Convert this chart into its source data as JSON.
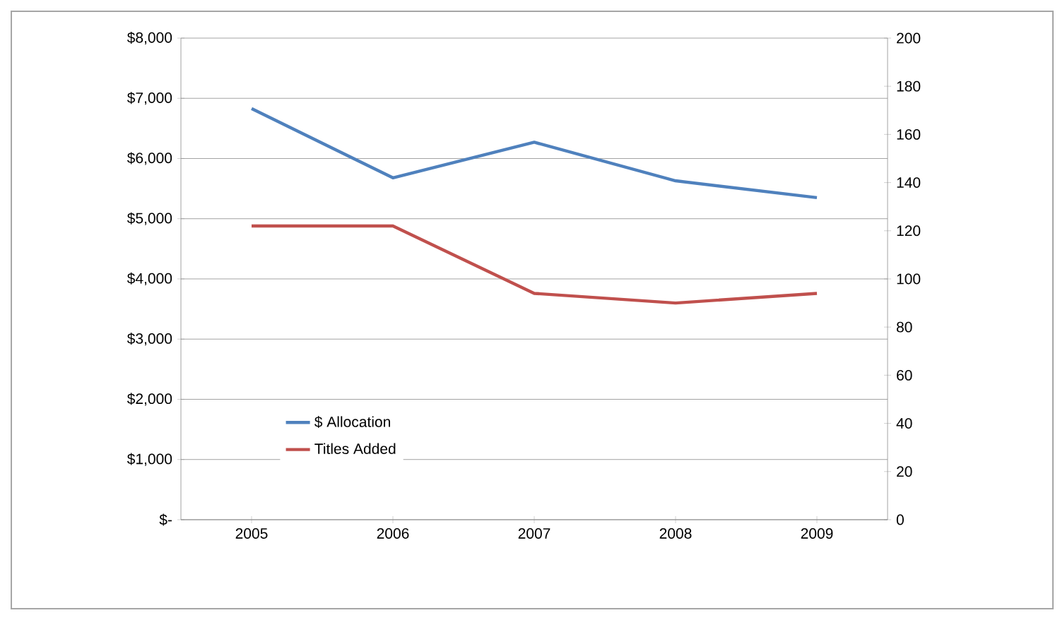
{
  "chart_data": {
    "type": "line",
    "categories": [
      "2005",
      "2006",
      "2007",
      "2008",
      "2009"
    ],
    "series": [
      {
        "name": "$ Allocation",
        "color": "#4f81bd",
        "values": [
          6830,
          5680,
          6270,
          5630,
          5350
        ]
      },
      {
        "name": "Titles Added",
        "color": "#c0504d",
        "values": [
          122,
          122,
          94,
          90,
          94
        ],
        "axis": "y2"
      }
    ],
    "ylim": [
      0,
      8000
    ],
    "yticks": [
      {
        "value": 0,
        "label": "$-"
      },
      {
        "value": 1000,
        "label": "$1,000"
      },
      {
        "value": 2000,
        "label": "$2,000"
      },
      {
        "value": 3000,
        "label": "$3,000"
      },
      {
        "value": 4000,
        "label": "$4,000"
      },
      {
        "value": 5000,
        "label": "$5,000"
      },
      {
        "value": 6000,
        "label": "$6,000"
      },
      {
        "value": 7000,
        "label": "$7,000"
      },
      {
        "value": 8000,
        "label": "$8,000"
      }
    ],
    "y2lim": [
      0,
      200
    ],
    "y2ticks": [
      0,
      20,
      40,
      60,
      80,
      100,
      120,
      140,
      160,
      180,
      200
    ],
    "grid": "y",
    "legend": "bottom left",
    "line_style": "solid",
    "marker": "none"
  }
}
